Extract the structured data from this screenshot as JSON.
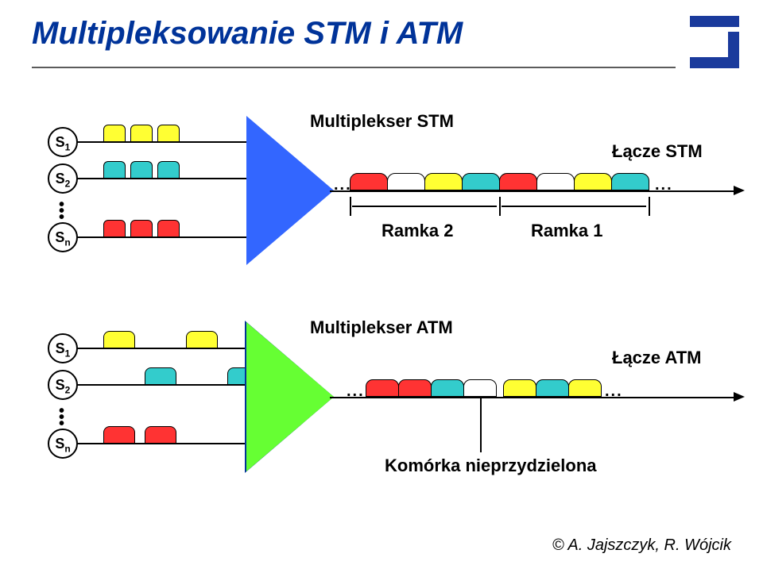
{
  "title": "Multipleksowanie STM i ATM",
  "footer": "©  A. Jajszczyk, R. Wójcik",
  "colors": {
    "yellow": "#ffff33",
    "teal": "#33cccc",
    "red": "#ff3333",
    "white": "#ffffff",
    "tri_stm": "#3366ff",
    "tri_atm": "#66ff33",
    "tri_border": "#003399",
    "title_color": "#003399",
    "logo_color": "#1a3a9c"
  },
  "stm": {
    "label_mux": "Multiplekser STM",
    "label_link": "Łącze STM",
    "label_frame2": "Ramka 2",
    "label_frame1": "Ramka 1",
    "sources": [
      {
        "main": "S",
        "sub": "1",
        "cells": [
          "yellow",
          "yellow",
          "yellow"
        ]
      },
      {
        "main": "S",
        "sub": "2",
        "cells": [
          "teal",
          "teal",
          "teal"
        ]
      },
      {
        "main": "S",
        "sub": "n",
        "cells": [
          "red",
          "red",
          "red"
        ]
      }
    ],
    "frame2": [
      "red",
      "white",
      "yellow",
      "teal"
    ],
    "frame1": [
      "red",
      "white",
      "yellow",
      "teal"
    ]
  },
  "atm": {
    "label_mux": "Multiplekser ATM",
    "label_link": "Łącze ATM",
    "label_unassigned": "Komórka nieprzydzielona",
    "sources": [
      {
        "main": "S",
        "sub": "1",
        "cells": [
          "yellow",
          "yellow"
        ],
        "positions": [
          0,
          2
        ]
      },
      {
        "main": "S",
        "sub": "2",
        "cells": [
          "teal",
          "teal"
        ],
        "positions": [
          1,
          3
        ]
      },
      {
        "main": "S",
        "sub": "n",
        "cells": [
          "red",
          "red"
        ],
        "positions": [
          0,
          1
        ]
      }
    ],
    "output": [
      {
        "c": "red"
      },
      {
        "c": "red"
      },
      {
        "c": "teal"
      },
      {
        "c": "white",
        "sep": true
      },
      {
        "c": "yellow"
      },
      {
        "c": "teal"
      },
      {
        "c": "yellow"
      }
    ]
  }
}
